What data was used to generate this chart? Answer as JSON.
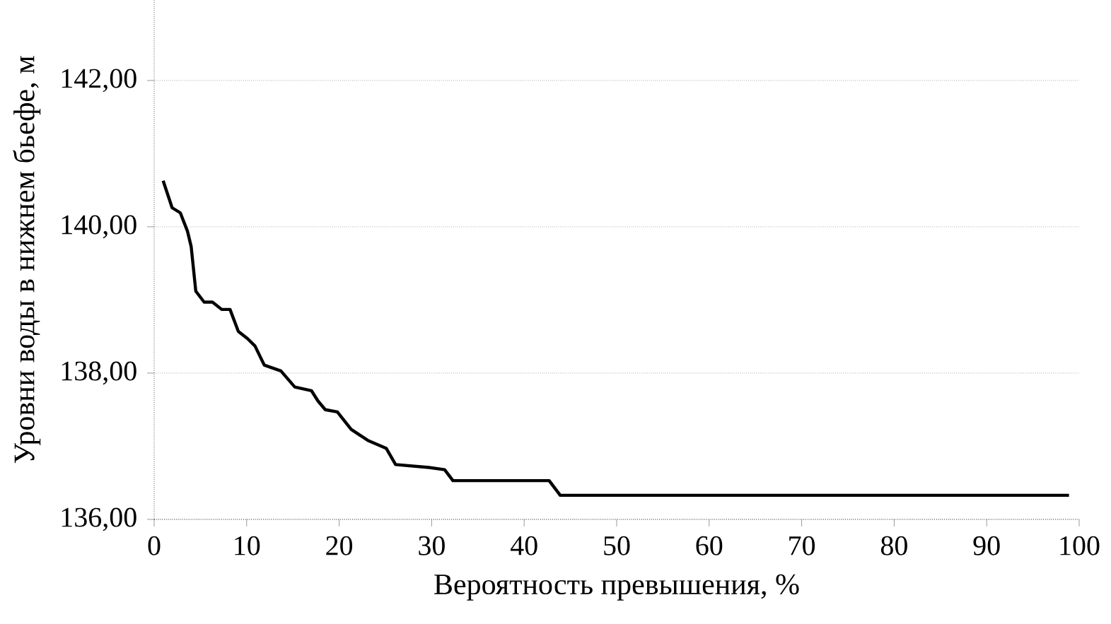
{
  "chart_data": {
    "type": "line",
    "xlabel": "Вероятность превышения, %",
    "ylabel": "Уровни воды в нижнем бьефе, м",
    "x": [
      0.97,
      1.94,
      2.83,
      3.6,
      4.0,
      4.5,
      5.4,
      6.3,
      7.3,
      8.2,
      9.1,
      10.1,
      10.9,
      11.9,
      13.7,
      15.2,
      17.0,
      17.7,
      18.5,
      19.8,
      21.3,
      23.1,
      25.1,
      26.1,
      29.7,
      31.4,
      32.3,
      42.7,
      43.9,
      98.9
    ],
    "values": [
      140.63,
      140.26,
      140.19,
      139.94,
      139.73,
      139.12,
      138.97,
      138.97,
      138.87,
      138.87,
      138.57,
      138.47,
      138.37,
      138.11,
      138.03,
      137.81,
      137.76,
      137.62,
      137.5,
      137.47,
      137.23,
      137.08,
      136.97,
      136.75,
      136.71,
      136.68,
      136.53,
      136.53,
      136.33,
      136.33
    ],
    "color": "#000000",
    "marker": "none",
    "line_style": "solid",
    "grid": "y",
    "xlim": [
      0,
      100
    ],
    "ylim": [
      136,
      143.1
    ],
    "xticks": [
      0,
      10,
      20,
      30,
      40,
      50,
      60,
      70,
      80,
      90,
      100
    ],
    "yticks": [
      {
        "value": 136,
        "label": "136,00"
      },
      {
        "value": 138,
        "label": "138,00"
      },
      {
        "value": 140,
        "label": "140,00"
      },
      {
        "value": 142,
        "label": "142,00"
      }
    ]
  }
}
